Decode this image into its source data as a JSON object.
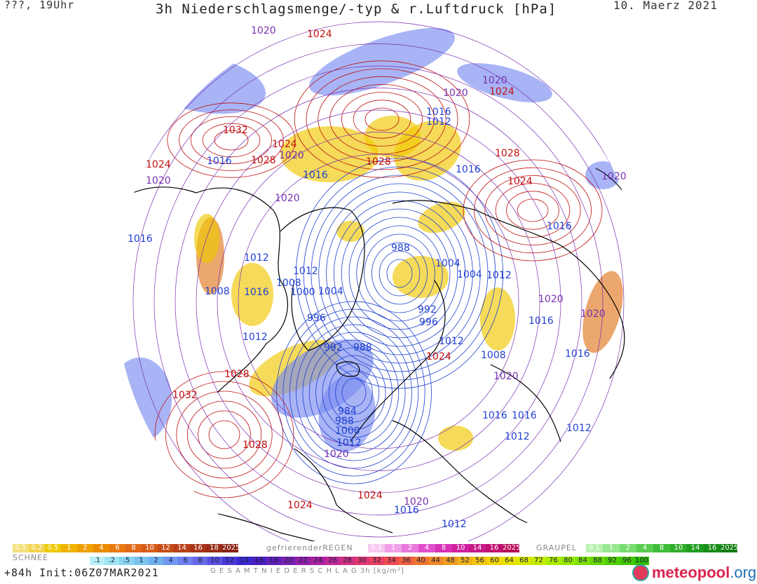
{
  "header": {
    "left": "???, 19Uhr",
    "title": "3h Niederschlagsmenge/-typ & r.Luftdruck [hPa]",
    "date": "10. Maerz 2021"
  },
  "colors": {
    "high_isobar": "#c01010",
    "low_isobar": "#2040d0",
    "mid_isobar": "#7a30b0",
    "coast": "#000000",
    "rain": "#f0c800",
    "snow": "#7a8cf0",
    "showers": "#e07820"
  },
  "map": {
    "isobar_labels": [
      {
        "text": "1020",
        "kind": "mid"
      },
      {
        "text": "1024",
        "kind": "high"
      },
      {
        "text": "1020",
        "kind": "mid"
      },
      {
        "text": "1024",
        "kind": "high"
      },
      {
        "text": "1020",
        "kind": "mid"
      },
      {
        "text": "1016",
        "kind": "low"
      },
      {
        "text": "1012",
        "kind": "low"
      },
      {
        "text": "1032",
        "kind": "high"
      },
      {
        "text": "1024",
        "kind": "high"
      },
      {
        "text": "1028",
        "kind": "high"
      },
      {
        "text": "1020",
        "kind": "mid"
      },
      {
        "text": "1028",
        "kind": "high"
      },
      {
        "text": "1016",
        "kind": "low"
      },
      {
        "text": "1028",
        "kind": "high"
      },
      {
        "text": "1016",
        "kind": "low"
      },
      {
        "text": "1024",
        "kind": "high"
      },
      {
        "text": "1016",
        "kind": "low"
      },
      {
        "text": "1020",
        "kind": "mid"
      },
      {
        "text": "1024",
        "kind": "high"
      },
      {
        "text": "1020",
        "kind": "mid"
      },
      {
        "text": "1020",
        "kind": "mid"
      },
      {
        "text": "1016",
        "kind": "low"
      },
      {
        "text": "1016",
        "kind": "low"
      },
      {
        "text": "1012",
        "kind": "low"
      },
      {
        "text": "988",
        "kind": "low"
      },
      {
        "text": "1012",
        "kind": "low"
      },
      {
        "text": "1008",
        "kind": "low"
      },
      {
        "text": "1000",
        "kind": "low"
      },
      {
        "text": "1004",
        "kind": "low"
      },
      {
        "text": "1004",
        "kind": "low"
      },
      {
        "text": "1004",
        "kind": "low"
      },
      {
        "text": "1012",
        "kind": "low"
      },
      {
        "text": "1008",
        "kind": "low"
      },
      {
        "text": "1016",
        "kind": "low"
      },
      {
        "text": "996",
        "kind": "low"
      },
      {
        "text": "992",
        "kind": "low"
      },
      {
        "text": "996",
        "kind": "low"
      },
      {
        "text": "1020",
        "kind": "mid"
      },
      {
        "text": "1020",
        "kind": "mid"
      },
      {
        "text": "1016",
        "kind": "low"
      },
      {
        "text": "1012",
        "kind": "low"
      },
      {
        "text": "992",
        "kind": "low"
      },
      {
        "text": "988",
        "kind": "low"
      },
      {
        "text": "1012",
        "kind": "low"
      },
      {
        "text": "1008",
        "kind": "low"
      },
      {
        "text": "1016",
        "kind": "low"
      },
      {
        "text": "1024",
        "kind": "high"
      },
      {
        "text": "1020",
        "kind": "mid"
      },
      {
        "text": "1028",
        "kind": "high"
      },
      {
        "text": "1032",
        "kind": "high"
      },
      {
        "text": "984",
        "kind": "low"
      },
      {
        "text": "988",
        "kind": "low"
      },
      {
        "text": "1000",
        "kind": "low"
      },
      {
        "text": "1012",
        "kind": "low"
      },
      {
        "text": "1016",
        "kind": "low"
      },
      {
        "text": "1016",
        "kind": "low"
      },
      {
        "text": "1012",
        "kind": "low"
      },
      {
        "text": "1012",
        "kind": "low"
      },
      {
        "text": "1028",
        "kind": "high"
      },
      {
        "text": "1020",
        "kind": "mid"
      },
      {
        "text": "1024",
        "kind": "high"
      },
      {
        "text": "1024",
        "kind": "high"
      },
      {
        "text": "1020",
        "kind": "mid"
      },
      {
        "text": "1016",
        "kind": "low"
      },
      {
        "text": "1012",
        "kind": "low"
      }
    ]
  },
  "legend": {
    "rain_bar": {
      "labels": [
        "0.1",
        "0.2",
        "0.5",
        "1",
        "2",
        "4",
        "6",
        "8",
        "10",
        "12",
        "14",
        "16",
        "18",
        "2025+"
      ],
      "colors": [
        "#f5e07a",
        "#f2d450",
        "#f0c800",
        "#efb400",
        "#eea000",
        "#ec8c00",
        "#e87a10",
        "#e06a18",
        "#d85a18",
        "#c84c18",
        "#b84018",
        "#a83418",
        "#982c18",
        "#8a2010"
      ]
    },
    "freezing_label": "gefrierenderREGEN",
    "freezing_bar": {
      "labels": [
        "0.1",
        "1",
        "2",
        "4",
        "8",
        "10",
        "14",
        "16",
        "2025+"
      ],
      "colors": [
        "#f7c8f0",
        "#f0a0e8",
        "#e878dc",
        "#e050cc",
        "#d830b8",
        "#d020a0",
        "#c81888",
        "#c01070",
        "#b80858"
      ]
    },
    "graupel_label": "GRAUPEL",
    "graupel_bar": {
      "labels": [
        "0.1",
        "1",
        "2",
        "4",
        "8",
        "10",
        "14",
        "16",
        "2025+"
      ],
      "colors": [
        "#b8f0b0",
        "#98e890",
        "#78dc70",
        "#58cc50",
        "#40bc38",
        "#30ac28",
        "#209c20",
        "#188c18",
        "#107c10"
      ]
    },
    "snow_label": "SCHNEE",
    "snow_bar": {
      "labels": [
        ".1",
        ".2",
        ".5",
        "1",
        "2",
        "4",
        "6",
        "8",
        "10",
        "12",
        "14",
        "16",
        "18",
        "20",
        "22",
        "24",
        "26",
        "28",
        "30",
        "32",
        "34",
        "36",
        "40",
        "44",
        "48",
        "52",
        "56",
        "60",
        "64",
        "68",
        "72",
        "76",
        "80",
        "84",
        "88",
        "92",
        "96",
        "100"
      ],
      "colors": [
        "#b8f0f8",
        "#a0e4f4",
        "#88d4f0",
        "#78c4ee",
        "#70b0ee",
        "#7098f0",
        "#7080f0",
        "#6868e8",
        "#5850e0",
        "#4838d8",
        "#3c28cc",
        "#4820c0",
        "#6020b8",
        "#7820b0",
        "#9020a8",
        "#a820a0",
        "#c02898",
        "#d03080",
        "#e03870",
        "#e84060",
        "#f04c50",
        "#f06040",
        "#f07430",
        "#f08828",
        "#f09c20",
        "#f0b018",
        "#f0c410",
        "#f0d408",
        "#e8e000",
        "#d8e800",
        "#c4ec00",
        "#acec00",
        "#94e800",
        "#7ce000",
        "#64d800",
        "#50d000",
        "#40c800",
        "#30c000"
      ]
    },
    "total_label": "G E S A M T N I E D E R S C H L A G   3h   [kg/m²]",
    "init": "+84h Init:06Z07MAR2021",
    "logo_brand": "meteo",
    "logo_org": "pool",
    "logo_tld": ".org"
  }
}
